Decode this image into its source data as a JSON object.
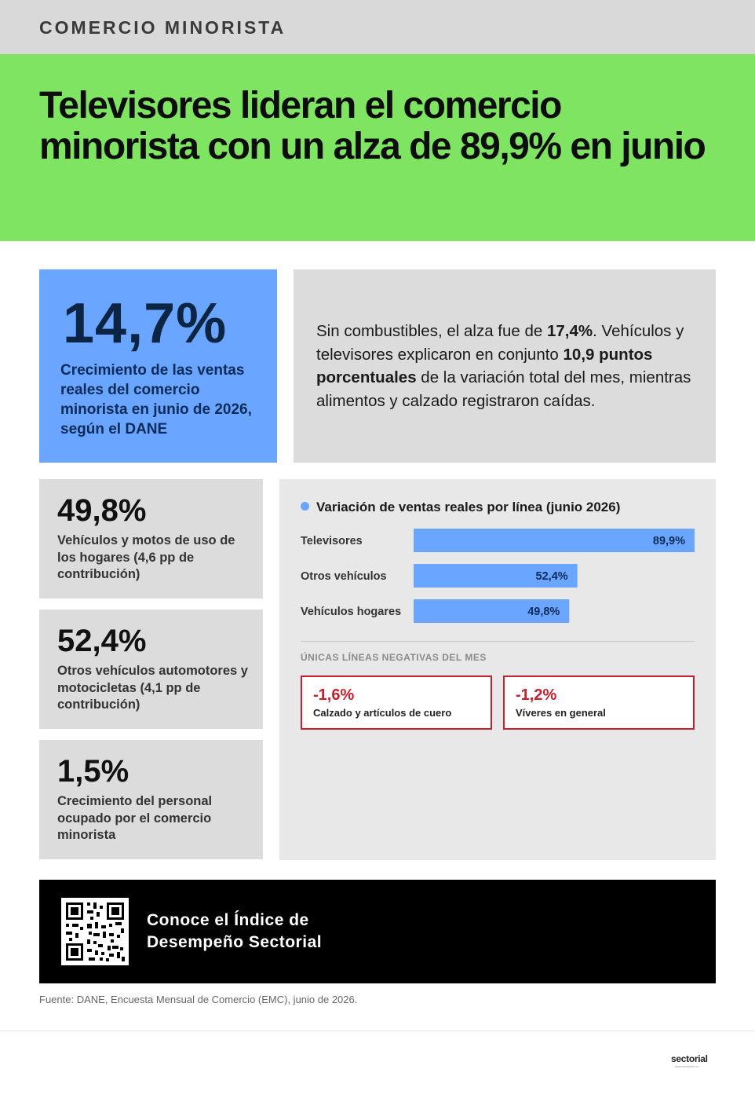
{
  "header": {
    "kicker": "COMERCIO MINORISTA"
  },
  "hero": {
    "headline": "Televisores lideran el comercio minorista con un alza de 89,9% en junio"
  },
  "main_stat": {
    "value": "14,7%",
    "description": "Crecimiento de las ventas reales del comercio minorista en junio de 2026, según el DANE"
  },
  "summary": {
    "t1": "Sin combustibles, el alza fue de ",
    "b1": "17,4%",
    "t2": ". Vehículos y televisores explicaron en conjunto ",
    "b2": "10,9 puntos porcentuales",
    "t3": " de la variación total del mes, mientras alimentos y calzado registraron caídas."
  },
  "stats": [
    {
      "value": "49,8%",
      "description": "Vehículos y motos de uso de los hogares (4,6 pp de contribución)"
    },
    {
      "value": "52,4%",
      "description": "Otros vehículos automotores y motocicletas (4,1 pp de contribución)"
    },
    {
      "value": "1,5%",
      "description": "Crecimiento del personal ocupado por el comercio minorista"
    }
  ],
  "chart_data": {
    "type": "bar",
    "orientation": "horizontal",
    "title": "Variación de ventas reales por línea (junio 2026)",
    "categories": [
      "Televisores",
      "Otros vehículos",
      "Vehículos hogares"
    ],
    "values": [
      89.9,
      52.4,
      49.8
    ],
    "value_labels": [
      "89,9%",
      "52,4%",
      "49,8%"
    ],
    "color": "#6aa6ff"
  },
  "negatives": {
    "heading": "ÚNICAS LÍNEAS NEGATIVAS DEL MES",
    "items": [
      {
        "value": "-1,6%",
        "label": "Calzado y artículos de cuero"
      },
      {
        "value": "-1,2%",
        "label": "Víveres en general"
      }
    ]
  },
  "cta": {
    "line1": "Conoce el Índice de",
    "line2": "Desempeño Sectorial"
  },
  "source": "Fuente: DANE, Encuesta Mensual de Comercio (EMC), junio de 2026.",
  "logo": {
    "text": "sectorial",
    "sub": "www.sectorial.co"
  }
}
